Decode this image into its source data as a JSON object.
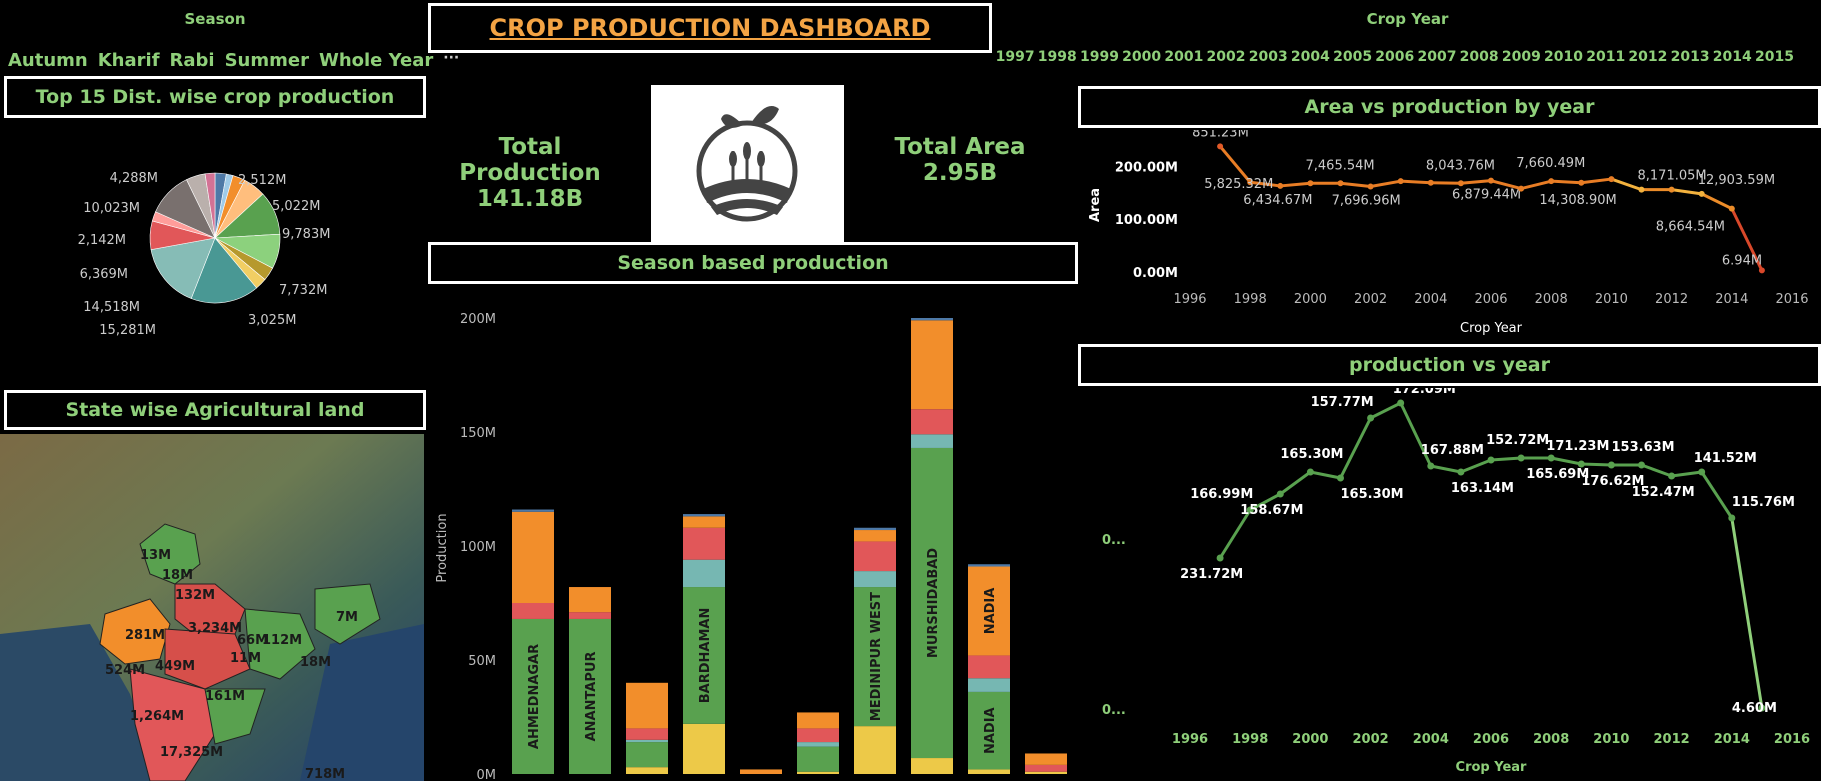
{
  "season_filter": {
    "title": "Season",
    "items": [
      "Autumn",
      "Kharif",
      "Rabi",
      "Summer",
      "Whole Year",
      "···"
    ]
  },
  "dashboard_title": "CROP PRODUCTION DASHBOARD",
  "year_filter": {
    "title": "Crop Year",
    "years": [
      "1997",
      "1998",
      "1999",
      "2000",
      "2001",
      "2002",
      "2003",
      "2004",
      "2005",
      "2006",
      "2007",
      "2008",
      "2009",
      "2010",
      "2011",
      "2012",
      "2013",
      "2014",
      "2015"
    ]
  },
  "kpi": {
    "production_label": "Total Production",
    "production_value": "141.18B",
    "area_label": "Total Area",
    "area_value": "2.95B"
  },
  "titles": {
    "pie": "Top 15 Dist. wise crop production",
    "map": "State wise Agricultural land",
    "season": "Season based production",
    "area": "Area vs production by year",
    "production": "production vs year"
  },
  "colors": {
    "accent": "#8fcf7a",
    "title_orange": "#f4a444"
  },
  "pie_chart": {
    "type": "pie",
    "labels": [
      "2,512M",
      "5,022M",
      "9,783M",
      "7,732M",
      "3,025M",
      "15,281M",
      "14,518M",
      "6,369M",
      "2,142M",
      "10,023M",
      "4,288M"
    ],
    "slices": [
      {
        "value": 2512,
        "color": "#4e79a7"
      },
      {
        "value": 1500,
        "color": "#a0cbe8"
      },
      {
        "value": 2800,
        "color": "#f28e2b"
      },
      {
        "value": 5022,
        "color": "#ffbe7d"
      },
      {
        "value": 9783,
        "color": "#59a14f"
      },
      {
        "value": 7732,
        "color": "#8cd17d"
      },
      {
        "value": 3025,
        "color": "#b6992d"
      },
      {
        "value": 2600,
        "color": "#f1ce63"
      },
      {
        "value": 15281,
        "color": "#499894"
      },
      {
        "value": 14518,
        "color": "#86bcb6"
      },
      {
        "value": 6369,
        "color": "#e15759"
      },
      {
        "value": 2142,
        "color": "#ff9d9a"
      },
      {
        "value": 10023,
        "color": "#79706e"
      },
      {
        "value": 4288,
        "color": "#bab0ac"
      },
      {
        "value": 2200,
        "color": "#d37295"
      }
    ]
  },
  "map": {
    "labels": [
      "13M",
      "18M",
      "132M",
      "281M",
      "3,234M",
      "66M",
      "112M",
      "7M",
      "524M",
      "449M",
      "11M",
      "18M",
      "161M",
      "1,264M",
      "17,325M",
      "718M"
    ]
  },
  "season_chart": {
    "type": "bar",
    "ylabel": "Production",
    "ylim": [
      0,
      200
    ],
    "yticks": [
      "0M",
      "50M",
      "100M",
      "150M",
      "200M"
    ],
    "bars": [
      {
        "label": "AHMEDNAGAR",
        "segments": [
          {
            "v": 0,
            "c": "#edc948"
          },
          {
            "v": 68,
            "c": "#59a14f"
          },
          {
            "v": 0,
            "c": "#76b7b2"
          },
          {
            "v": 7,
            "c": "#e15759"
          },
          {
            "v": 40,
            "c": "#f28e2b"
          },
          {
            "v": 1,
            "c": "#4e79a7"
          }
        ]
      },
      {
        "label": "ANANTAPUR",
        "segments": [
          {
            "v": 0,
            "c": "#edc948"
          },
          {
            "v": 68,
            "c": "#59a14f"
          },
          {
            "v": 0,
            "c": "#76b7b2"
          },
          {
            "v": 3,
            "c": "#e15759"
          },
          {
            "v": 11,
            "c": "#f28e2b"
          },
          {
            "v": 0,
            "c": "#4e79a7"
          }
        ]
      },
      {
        "label": "",
        "segments": [
          {
            "v": 3,
            "c": "#edc948"
          },
          {
            "v": 11,
            "c": "#59a14f"
          },
          {
            "v": 1,
            "c": "#76b7b2"
          },
          {
            "v": 5,
            "c": "#e15759"
          },
          {
            "v": 20,
            "c": "#f28e2b"
          },
          {
            "v": 0,
            "c": "#4e79a7"
          }
        ]
      },
      {
        "label": "BARDHAMAN",
        "segments": [
          {
            "v": 22,
            "c": "#edc948"
          },
          {
            "v": 60,
            "c": "#59a14f"
          },
          {
            "v": 12,
            "c": "#76b7b2"
          },
          {
            "v": 14,
            "c": "#e15759"
          },
          {
            "v": 5,
            "c": "#f28e2b"
          },
          {
            "v": 1,
            "c": "#4e79a7"
          }
        ]
      },
      {
        "label": "",
        "segments": [
          {
            "v": 0,
            "c": "#edc948"
          },
          {
            "v": 0,
            "c": "#59a14f"
          },
          {
            "v": 0,
            "c": "#76b7b2"
          },
          {
            "v": 0,
            "c": "#e15759"
          },
          {
            "v": 2,
            "c": "#f28e2b"
          },
          {
            "v": 0,
            "c": "#4e79a7"
          }
        ]
      },
      {
        "label": "",
        "segments": [
          {
            "v": 1,
            "c": "#edc948"
          },
          {
            "v": 11,
            "c": "#59a14f"
          },
          {
            "v": 2,
            "c": "#76b7b2"
          },
          {
            "v": 6,
            "c": "#e15759"
          },
          {
            "v": 7,
            "c": "#f28e2b"
          },
          {
            "v": 0,
            "c": "#4e79a7"
          }
        ]
      },
      {
        "label": "MEDINIPUR WEST",
        "segments": [
          {
            "v": 21,
            "c": "#edc948"
          },
          {
            "v": 61,
            "c": "#59a14f"
          },
          {
            "v": 7,
            "c": "#76b7b2"
          },
          {
            "v": 13,
            "c": "#e15759"
          },
          {
            "v": 5,
            "c": "#f28e2b"
          },
          {
            "v": 1,
            "c": "#4e79a7"
          }
        ]
      },
      {
        "label": "MURSHIDABAD",
        "segments": [
          {
            "v": 7,
            "c": "#edc948"
          },
          {
            "v": 136,
            "c": "#59a14f"
          },
          {
            "v": 6,
            "c": "#76b7b2"
          },
          {
            "v": 11,
            "c": "#e15759"
          },
          {
            "v": 39,
            "c": "#f28e2b"
          },
          {
            "v": 1,
            "c": "#4e79a7"
          }
        ]
      },
      {
        "label": "NADIA",
        "segments": [
          {
            "v": 2,
            "c": "#edc948"
          },
          {
            "v": 34,
            "c": "#59a14f"
          },
          {
            "v": 6,
            "c": "#76b7b2"
          },
          {
            "v": 10,
            "c": "#e15759"
          },
          {
            "v": 39,
            "c": "#f28e2b"
          },
          {
            "v": 1,
            "c": "#4e79a7"
          }
        ],
        "label2": "NADIA"
      },
      {
        "label": "",
        "segments": [
          {
            "v": 1,
            "c": "#edc948"
          },
          {
            "v": 0,
            "c": "#59a14f"
          },
          {
            "v": 0,
            "c": "#76b7b2"
          },
          {
            "v": 3,
            "c": "#e15759"
          },
          {
            "v": 5,
            "c": "#f28e2b"
          },
          {
            "v": 0,
            "c": "#4e79a7"
          }
        ]
      }
    ]
  },
  "area_chart": {
    "type": "line",
    "xlabel": "Crop Year",
    "ylabel": "Area",
    "xlim": [
      1996,
      2016
    ],
    "ylim": [
      0,
      250
    ],
    "xticks": [
      "1996",
      "1998",
      "2000",
      "2002",
      "2004",
      "2006",
      "2008",
      "2010",
      "2012",
      "2014",
      "2016"
    ],
    "yticks": [
      {
        "v": 0,
        "t": "0.00M"
      },
      {
        "v": 100,
        "t": "100.00M"
      },
      {
        "v": 200,
        "t": "200.00M"
      }
    ],
    "points": [
      {
        "x": 1997,
        "y": 238,
        "label": "851.23M",
        "color": "#e15a28"
      },
      {
        "x": 1998,
        "y": 170,
        "label": "5,825.32M",
        "color": "#e87d25"
      },
      {
        "x": 1999,
        "y": 163,
        "label": "6,434.67M",
        "color": "#e87d25"
      },
      {
        "x": 2000,
        "y": 168,
        "label": "",
        "color": "#e87d25"
      },
      {
        "x": 2001,
        "y": 168,
        "label": "7,465.54M",
        "color": "#e87d25"
      },
      {
        "x": 2002,
        "y": 162,
        "label": "7,696.96M",
        "color": "#e87d25"
      },
      {
        "x": 2003,
        "y": 172,
        "label": "",
        "color": "#e87d25"
      },
      {
        "x": 2004,
        "y": 169,
        "label": "",
        "color": "#e87d25"
      },
      {
        "x": 2005,
        "y": 168,
        "label": "8,043.76M",
        "color": "#e87d25"
      },
      {
        "x": 2006,
        "y": 173,
        "label": "6,879.44M",
        "color": "#e87d25"
      },
      {
        "x": 2007,
        "y": 158,
        "label": "",
        "color": "#e87d25"
      },
      {
        "x": 2008,
        "y": 172,
        "label": "7,660.49M",
        "color": "#e87d25"
      },
      {
        "x": 2009,
        "y": 169,
        "label": "",
        "color": "#e87d25"
      },
      {
        "x": 2010,
        "y": 176,
        "label": "14,308.90M",
        "color": "#e87d25"
      },
      {
        "x": 2011,
        "y": 156,
        "label": "8,171.05M",
        "color": "#f3b23e"
      },
      {
        "x": 2012,
        "y": 156,
        "label": "",
        "color": "#eb8c29"
      },
      {
        "x": 2013,
        "y": 148,
        "label": "12,903.59M",
        "color": "#f3b23e"
      },
      {
        "x": 2014,
        "y": 120,
        "label": "8,664.54M",
        "color": "#eb8c29"
      },
      {
        "x": 2015,
        "y": 3,
        "label": "6.94M",
        "color": "#d9482a"
      }
    ]
  },
  "production_chart": {
    "type": "line",
    "xlabel": "Crop Year",
    "xlim": [
      1996,
      2016
    ],
    "xticks": [
      "1996",
      "1998",
      "2000",
      "2002",
      "2004",
      "2006",
      "2008",
      "2010",
      "2012",
      "2014",
      "2016"
    ],
    "yticks": [
      "0...",
      "0..."
    ],
    "points": [
      {
        "x": 1997,
        "y": 231.72,
        "label": "231.72M"
      },
      {
        "x": 1998,
        "y": 166.99,
        "label": "166.99M"
      },
      {
        "x": 1999,
        "y": 158.67,
        "label": "158.67M"
      },
      {
        "x": 2000,
        "y": 165.3,
        "label": "165.30M"
      },
      {
        "x": 2001,
        "y": 165.3,
        "label": "165.30M"
      },
      {
        "x": 2002,
        "y": 157.77,
        "label": "157.77M"
      },
      {
        "x": 2003,
        "y": 172.09,
        "label": "172.09M"
      },
      {
        "x": 2004,
        "y": 167.88,
        "label": "167.88M"
      },
      {
        "x": 2005,
        "y": 163.14,
        "label": "163.14M"
      },
      {
        "x": 2006,
        "y": 165.0,
        "label": ""
      },
      {
        "x": 2007,
        "y": 152.72,
        "label": "152.72M"
      },
      {
        "x": 2008,
        "y": 165.69,
        "label": "165.69M"
      },
      {
        "x": 2009,
        "y": 171.23,
        "label": "171.23M"
      },
      {
        "x": 2010,
        "y": 176.62,
        "label": "176.62M"
      },
      {
        "x": 2011,
        "y": 153.63,
        "label": "153.63M"
      },
      {
        "x": 2012,
        "y": 152.47,
        "label": "152.47M"
      },
      {
        "x": 2013,
        "y": 141.52,
        "label": "141.52M"
      },
      {
        "x": 2014,
        "y": 115.76,
        "label": "115.76M"
      },
      {
        "x": 2015,
        "y": 4.6,
        "label": "4.60M"
      }
    ]
  }
}
